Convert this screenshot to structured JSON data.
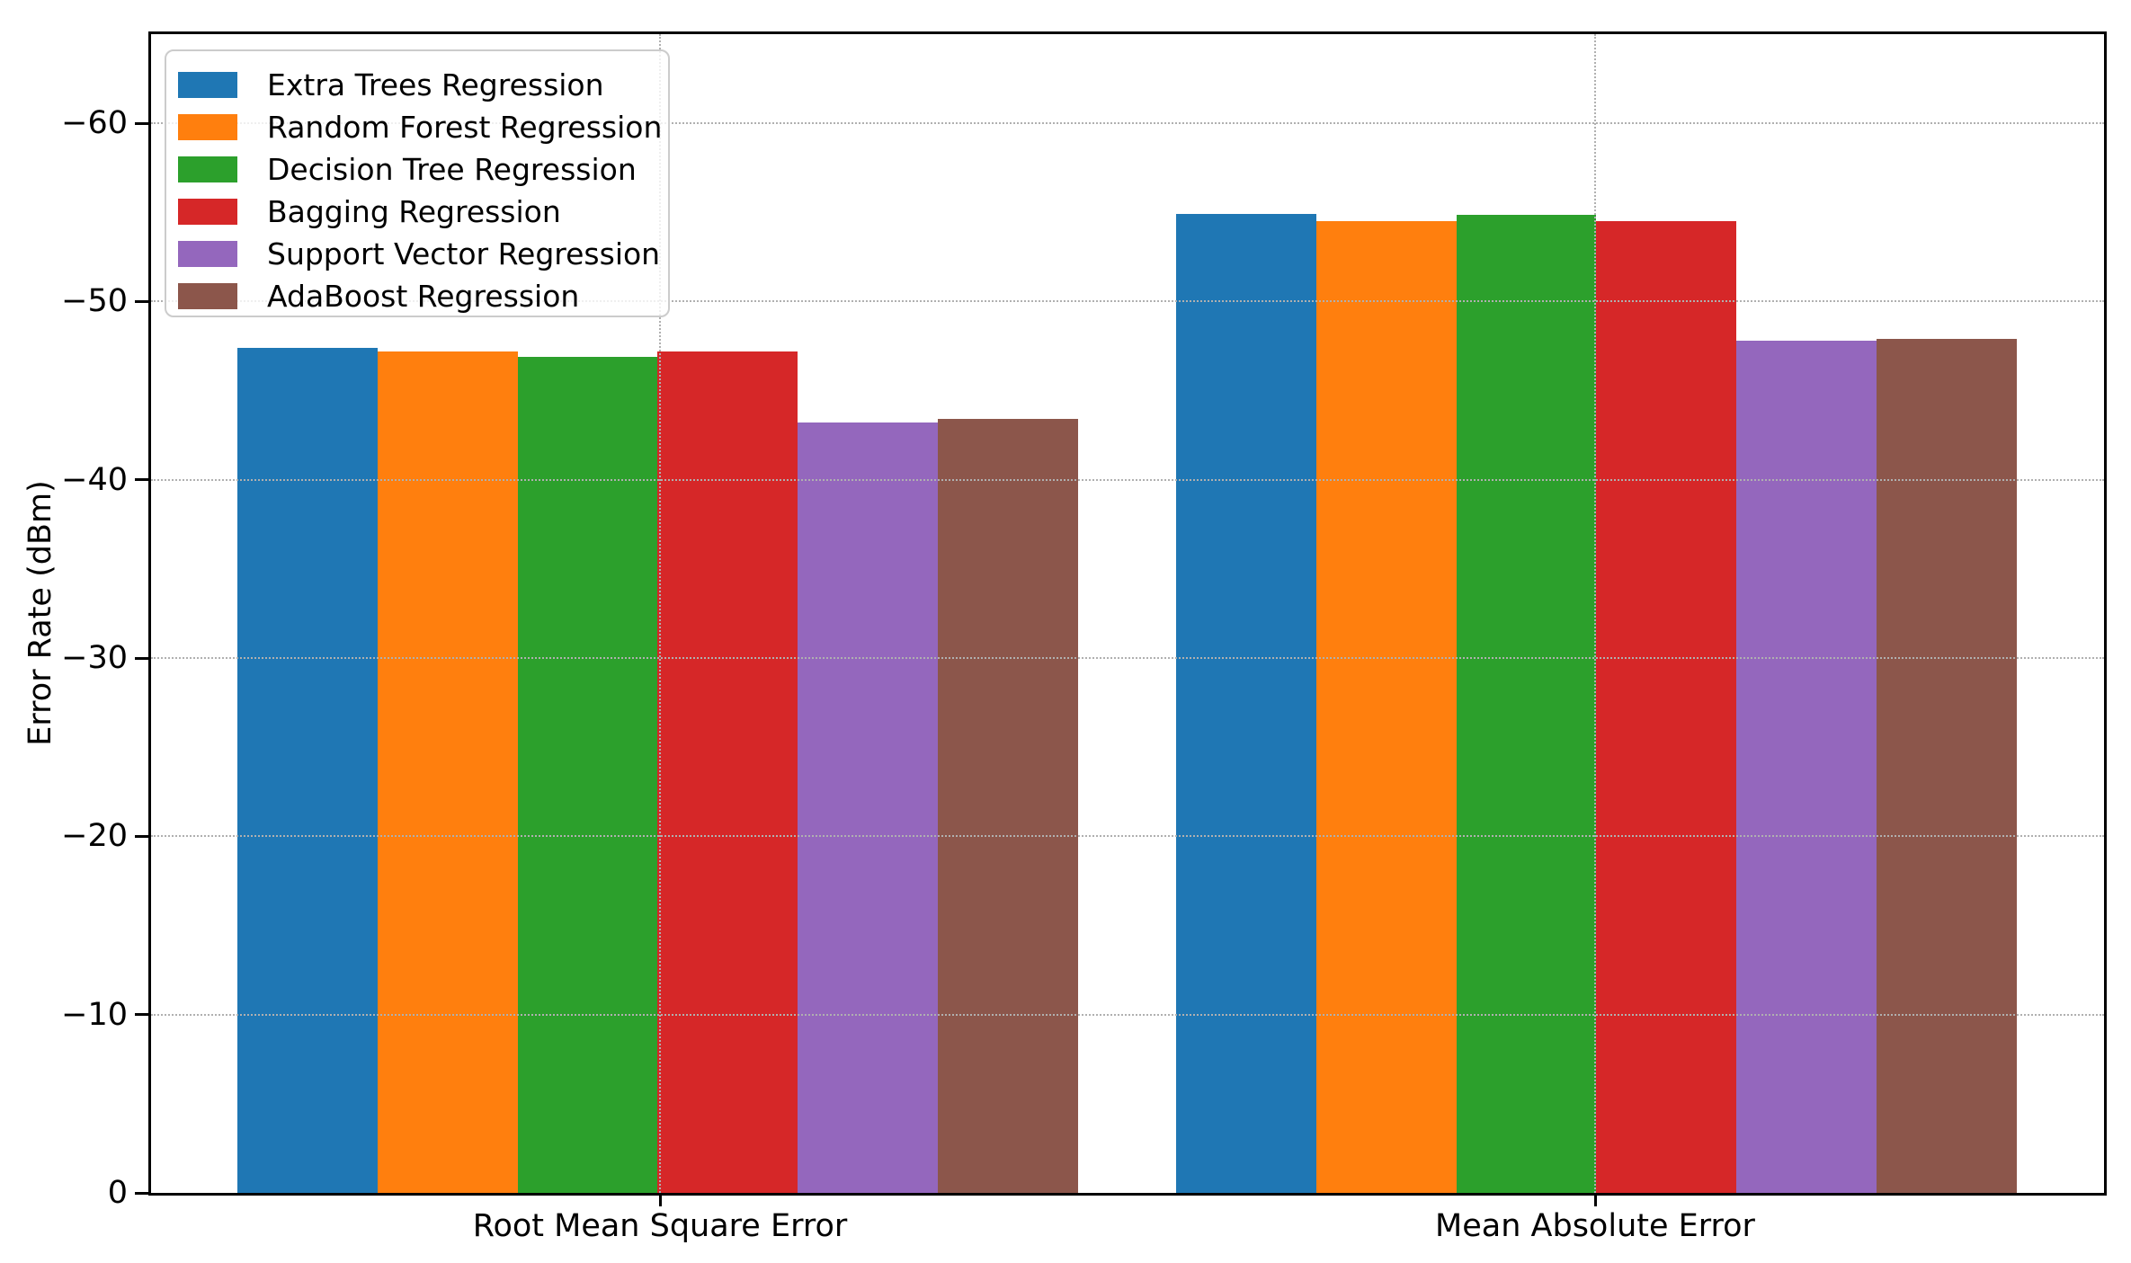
{
  "chart_data": {
    "type": "bar",
    "categories": [
      "Root Mean Square Error",
      "Mean Absolute Error"
    ],
    "series": [
      {
        "name": "Extra Trees Regression",
        "color": "#1f77b4",
        "values": [
          -47.4,
          -54.9
        ]
      },
      {
        "name": "Random Forest Regression",
        "color": "#ff7f0e",
        "values": [
          -47.2,
          -54.5
        ]
      },
      {
        "name": "Decision Tree Regression",
        "color": "#2ca02c",
        "values": [
          -46.9,
          -54.85
        ]
      },
      {
        "name": "Bagging Regression",
        "color": "#d62728",
        "values": [
          -47.2,
          -54.5
        ]
      },
      {
        "name": "Support Vector Regression",
        "color": "#9467bd",
        "values": [
          -43.2,
          -47.8
        ]
      },
      {
        "name": "AdaBoost Regression",
        "color": "#8c564b",
        "values": [
          -43.4,
          -47.9
        ]
      }
    ],
    "title": "",
    "xlabel": "",
    "ylabel": "Error Rate (dBm)",
    "y_axis_inverted": true,
    "ylim": [
      0,
      -65
    ],
    "yticks": [
      -60,
      -50,
      -40,
      -30,
      -20,
      -10,
      0
    ],
    "ytick_labels": [
      "−60",
      "−50",
      "−40",
      "−30",
      "−20",
      "−10",
      "0"
    ],
    "grid": {
      "visible": true,
      "axis": "both",
      "linestyle": "dotted",
      "color": "#b0b0b0"
    },
    "legend": {
      "position": "upper left"
    },
    "axis_color": "#000000",
    "background_color": "#ffffff"
  }
}
